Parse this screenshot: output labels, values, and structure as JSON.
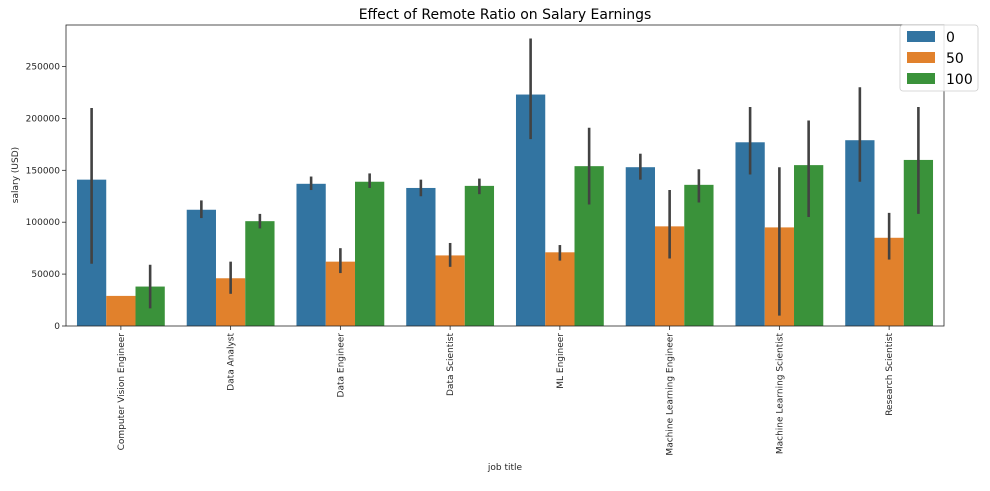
{
  "chart_data": {
    "type": "bar",
    "title": "Effect of Remote Ratio on Salary Earnings",
    "xlabel": "job title",
    "ylabel": "salary (USD)",
    "ylim": [
      0,
      290000
    ],
    "yticks": [
      0,
      50000,
      100000,
      150000,
      200000,
      250000
    ],
    "ytick_labels": [
      "0",
      "50000",
      "100000",
      "150000",
      "200000",
      "250000"
    ],
    "legend_position": "top-right",
    "categories": [
      "Computer Vision Engineer",
      "Data Analyst",
      "Data Engineer",
      "Data Scientist",
      "ML Engineer",
      "Machine Learning Engineer",
      "Machine Learning Scientist",
      "Research Scientist"
    ],
    "series": [
      {
        "name": "0",
        "color": "#3274a1",
        "values": [
          141000,
          112000,
          137000,
          133000,
          223000,
          153000,
          177000,
          179000
        ],
        "error_low": [
          60000,
          104000,
          131000,
          125000,
          180000,
          141000,
          146000,
          139000
        ],
        "error_high": [
          210000,
          121000,
          144000,
          141000,
          277000,
          166000,
          211000,
          230000
        ]
      },
      {
        "name": "50",
        "color": "#e1812c",
        "values": [
          29000,
          46000,
          62000,
          68000,
          71000,
          96000,
          95000,
          85000
        ],
        "error_low": [
          29000,
          31000,
          51000,
          57000,
          63000,
          65000,
          10000,
          64000
        ],
        "error_high": [
          29000,
          62000,
          75000,
          80000,
          78000,
          131000,
          153000,
          109000
        ]
      },
      {
        "name": "100",
        "color": "#3a923a",
        "values": [
          38000,
          101000,
          139000,
          135000,
          154000,
          136000,
          155000,
          160000
        ],
        "error_low": [
          17000,
          94000,
          133000,
          127000,
          117000,
          119000,
          105000,
          108000
        ],
        "error_high": [
          59000,
          108000,
          147000,
          142000,
          191000,
          151000,
          198000,
          211000
        ]
      }
    ]
  }
}
